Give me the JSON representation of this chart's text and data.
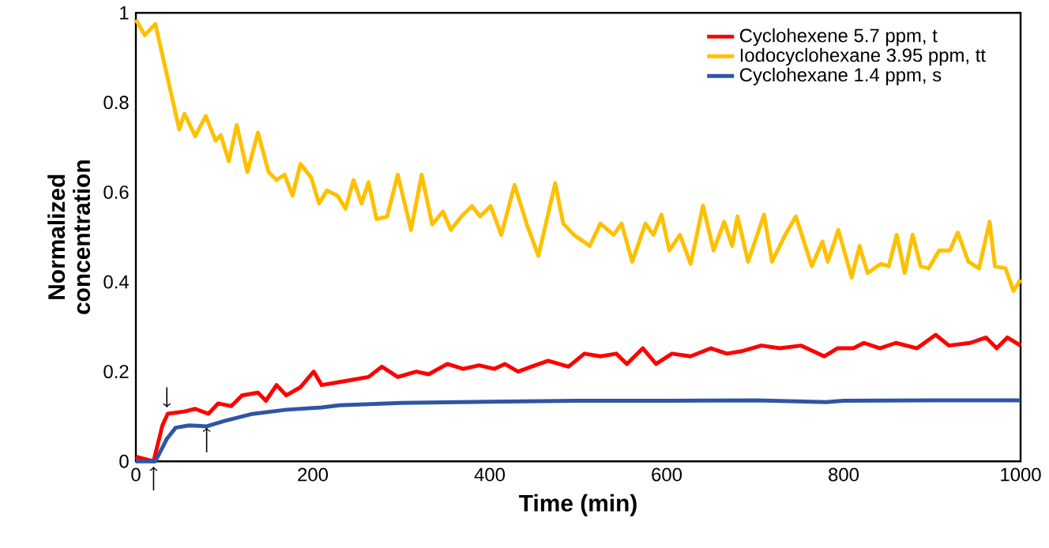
{
  "chart_data": {
    "type": "line",
    "xlabel": "Time (min)",
    "ylabel": "Normalized concentration",
    "xlim": [
      0,
      1000
    ],
    "ylim": [
      0,
      1
    ],
    "xticks": [
      0,
      200,
      400,
      600,
      800,
      1000
    ],
    "yticks": [
      0,
      0.2,
      0.4,
      0.6,
      0.8,
      1
    ],
    "grid": false,
    "legend": "top right",
    "marker": "none",
    "line_style": "solid",
    "series": [
      {
        "name": "Cyclohexene 5.7 ppm, t",
        "color": "#ff0000",
        "x": [
          0,
          20,
          30,
          36,
          55,
          67,
          82,
          93,
          108,
          120,
          138,
          147,
          159,
          170,
          186,
          201,
          210,
          228,
          246,
          263,
          278,
          296,
          317,
          331,
          352,
          370,
          388,
          405,
          417,
          432,
          447,
          466,
          489,
          507,
          525,
          543,
          555,
          573,
          588,
          606,
          627,
          650,
          668,
          686,
          707,
          728,
          752,
          778,
          793,
          811,
          823,
          841,
          859,
          883,
          904,
          919,
          943,
          961,
          973,
          985,
          1000
        ],
        "values": [
          0.01,
          0.0,
          0.08,
          0.106,
          0.111,
          0.117,
          0.106,
          0.129,
          0.123,
          0.147,
          0.153,
          0.135,
          0.17,
          0.147,
          0.165,
          0.2,
          0.17,
          0.176,
          0.182,
          0.188,
          0.211,
          0.188,
          0.2,
          0.194,
          0.217,
          0.206,
          0.214,
          0.206,
          0.217,
          0.2,
          0.211,
          0.224,
          0.211,
          0.24,
          0.234,
          0.24,
          0.217,
          0.252,
          0.217,
          0.24,
          0.234,
          0.252,
          0.24,
          0.246,
          0.258,
          0.252,
          0.258,
          0.234,
          0.252,
          0.252,
          0.264,
          0.252,
          0.264,
          0.252,
          0.282,
          0.258,
          0.264,
          0.276,
          0.252,
          0.276,
          0.258
        ]
      },
      {
        "name": "Iodocyclohexane 3.95 ppm, tt",
        "color": "#ffc000",
        "x": [
          0,
          10,
          22,
          49,
          55,
          67,
          79,
          90,
          96,
          105,
          114,
          126,
          138,
          150,
          159,
          168,
          177,
          186,
          198,
          207,
          216,
          228,
          237,
          246,
          255,
          263,
          272,
          284,
          296,
          311,
          323,
          335,
          347,
          356,
          368,
          380,
          389,
          401,
          413,
          428,
          442,
          455,
          474,
          483,
          495,
          513,
          525,
          540,
          549,
          561,
          576,
          585,
          594,
          603,
          615,
          627,
          641,
          653,
          665,
          674,
          680,
          692,
          710,
          719,
          734,
          746,
          764,
          776,
          782,
          794,
          809,
          818,
          827,
          842,
          851,
          860,
          869,
          878,
          887,
          896,
          908,
          920,
          929,
          941,
          953,
          965,
          971,
          983,
          992,
          1000
        ],
        "values": [
          0.985,
          0.95,
          0.975,
          0.74,
          0.775,
          0.725,
          0.77,
          0.715,
          0.727,
          0.669,
          0.75,
          0.645,
          0.733,
          0.645,
          0.627,
          0.639,
          0.592,
          0.663,
          0.633,
          0.575,
          0.604,
          0.592,
          0.563,
          0.627,
          0.575,
          0.622,
          0.54,
          0.546,
          0.639,
          0.516,
          0.639,
          0.528,
          0.557,
          0.516,
          0.546,
          0.569,
          0.546,
          0.569,
          0.505,
          0.616,
          0.528,
          0.458,
          0.62,
          0.53,
          0.505,
          0.48,
          0.53,
          0.505,
          0.53,
          0.445,
          0.53,
          0.505,
          0.55,
          0.47,
          0.505,
          0.44,
          0.57,
          0.47,
          0.534,
          0.48,
          0.546,
          0.445,
          0.55,
          0.445,
          0.505,
          0.546,
          0.435,
          0.49,
          0.445,
          0.516,
          0.41,
          0.48,
          0.42,
          0.44,
          0.435,
          0.505,
          0.42,
          0.505,
          0.435,
          0.43,
          0.47,
          0.47,
          0.51,
          0.445,
          0.43,
          0.534,
          0.435,
          0.43,
          0.38,
          0.405
        ]
      },
      {
        "name": "Cyclohexane 1.4 ppm, s",
        "color": "#2f55a4",
        "x": [
          0,
          22,
          35,
          45,
          60,
          80,
          100,
          130,
          170,
          210,
          230,
          300,
          400,
          500,
          600,
          700,
          780,
          800,
          900,
          1000
        ],
        "values": [
          0.0,
          0.0,
          0.05,
          0.075,
          0.08,
          0.078,
          0.09,
          0.105,
          0.115,
          0.12,
          0.125,
          0.13,
          0.133,
          0.135,
          0.135,
          0.136,
          0.132,
          0.135,
          0.136,
          0.136
        ]
      }
    ]
  }
}
